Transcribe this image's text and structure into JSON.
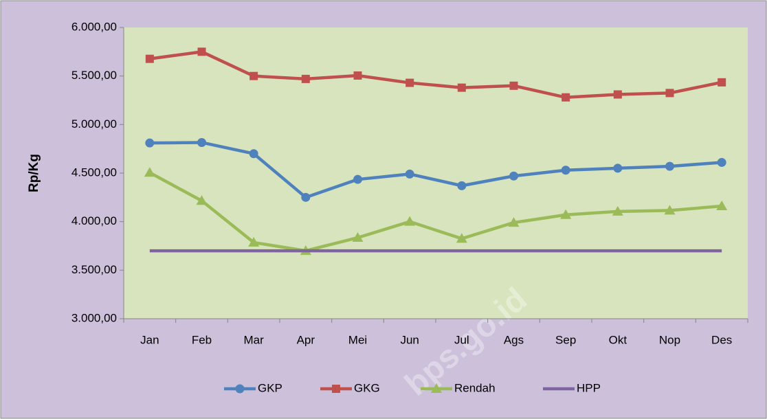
{
  "chart_data": {
    "type": "line",
    "y_label": "Rp/Kg",
    "watermark": "bps.go.id",
    "categories": [
      "Jan",
      "Feb",
      "Mar",
      "Apr",
      "Mei",
      "Jun",
      "Jul",
      "Ags",
      "Sep",
      "Okt",
      "Nop",
      "Des"
    ],
    "series": [
      {
        "name": "GKP",
        "color": "#4f81bd",
        "marker": "circle",
        "values": [
          4810,
          4815,
          4700,
          4250,
          4435,
          4490,
          4370,
          4470,
          4530,
          4550,
          4570,
          4610
        ]
      },
      {
        "name": "GKG",
        "color": "#c0504d",
        "marker": "square",
        "values": [
          5677,
          5750,
          5500,
          5470,
          5505,
          5430,
          5380,
          5400,
          5280,
          5310,
          5325,
          5435
        ]
      },
      {
        "name": "Rendah",
        "color": "#9bbb59",
        "marker": "triangle",
        "values": [
          4505,
          4215,
          3785,
          3700,
          3835,
          4000,
          3825,
          3990,
          4070,
          4105,
          4115,
          4160
        ]
      },
      {
        "name": "HPP",
        "color": "#8064a2",
        "marker": "none",
        "values": [
          3700,
          3700,
          3700,
          3700,
          3700,
          3700,
          3700,
          3700,
          3700,
          3700,
          3700,
          3700
        ]
      }
    ],
    "ylim": [
      3000,
      6000
    ],
    "yticks": [
      {
        "value": 3000,
        "label": "3.000,00"
      },
      {
        "value": 3500,
        "label": "3.500,00"
      },
      {
        "value": 4000,
        "label": "4.000,00"
      },
      {
        "value": 4500,
        "label": "4.500,00"
      },
      {
        "value": 5000,
        "label": "5.000,00"
      },
      {
        "value": 5500,
        "label": "5.500,00"
      },
      {
        "value": 6000,
        "label": "6.000,00"
      }
    ],
    "grid": false,
    "legend": "bottom"
  }
}
